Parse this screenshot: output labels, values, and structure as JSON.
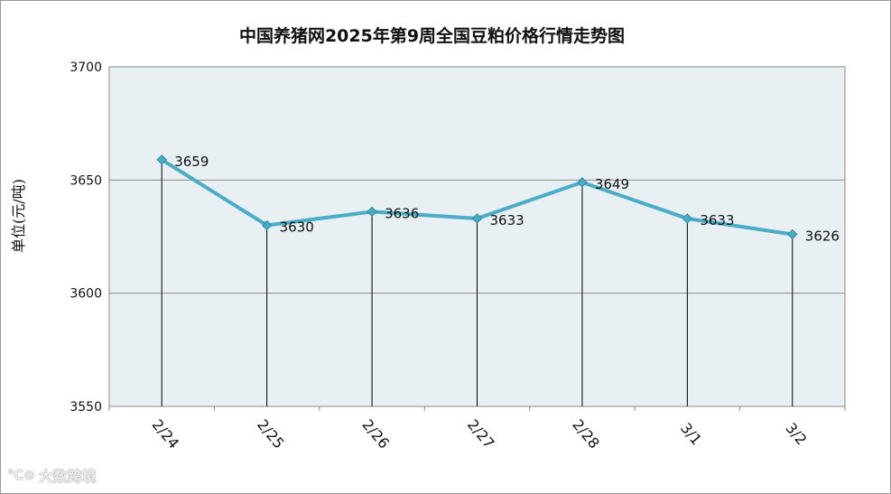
{
  "chart_data": {
    "type": "line",
    "title": "中国养猪网2025年第9周全国豆粕价格行情走势图",
    "ylabel": "单位(元/吨)",
    "xlabel": "",
    "categories": [
      "2/24",
      "2/25",
      "2/26",
      "2/27",
      "2/28",
      "3/1",
      "3/2"
    ],
    "series": [
      {
        "values": [
          3659,
          3630,
          3636,
          3633,
          3649,
          3633,
          3626
        ]
      }
    ],
    "ylim": [
      3550,
      3700
    ],
    "yticks": [
      3550,
      3600,
      3650,
      3700
    ],
    "grid": true,
    "drop_lines": true,
    "data_labels": true,
    "colors": {
      "line": "#4bacc6",
      "marker": "#4bacc6",
      "plot_background": "#e8f0f3",
      "gridline": "#8a8a8a",
      "drop_line": "#000000"
    }
  },
  "watermark": {
    "logo": "℃⊙",
    "text": "大数跨境"
  }
}
